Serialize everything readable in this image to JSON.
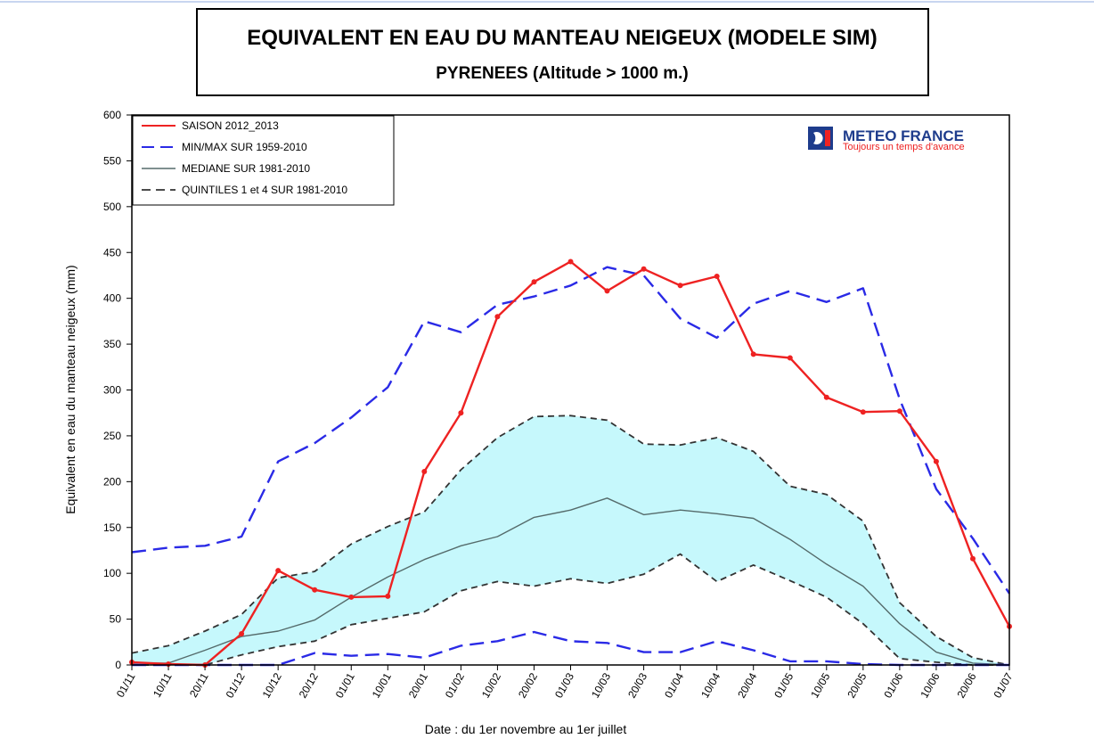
{
  "chart_data": {
    "type": "line",
    "title": "EQUIVALENT EN EAU DU MANTEAU NEIGEUX (MODELE SIM)",
    "subtitle": "PYRENEES  (Altitude > 1000 m.)",
    "xlabel": "Date : du 1er novembre au 1er juillet",
    "ylabel": "Equivalent en eau du manteau neigeux (mm)",
    "ylim": [
      0,
      600
    ],
    "yticks": [
      0,
      50,
      100,
      150,
      200,
      250,
      300,
      350,
      400,
      450,
      500,
      550,
      600
    ],
    "categories": [
      "01/11",
      "10/11",
      "20/11",
      "01/12",
      "10/12",
      "20/12",
      "01/01",
      "10/01",
      "20/01",
      "01/02",
      "10/02",
      "20/02",
      "01/03",
      "10/03",
      "20/03",
      "01/04",
      "10/04",
      "20/04",
      "01/05",
      "10/05",
      "20/05",
      "01/06",
      "10/06",
      "20/06",
      "01/07"
    ],
    "grid": false,
    "legend_position": "top-left",
    "series": [
      {
        "name": "SAISON 2012_2013",
        "color": "#ee2222",
        "style": "solid",
        "markers": true,
        "values": [
          3,
          1,
          0,
          34,
          103,
          82,
          74,
          75,
          211,
          275,
          380,
          418,
          440,
          408,
          432,
          414,
          424,
          339,
          335,
          292,
          276,
          277,
          222,
          116,
          42
        ]
      },
      {
        "name": "MIN/MAX SUR 1959-2010",
        "color": "#2a2ae6",
        "style": "dashed",
        "values": [
          123,
          128,
          130,
          140,
          222,
          242,
          270,
          303,
          375,
          363,
          393,
          402,
          414,
          434,
          425,
          378,
          357,
          394,
          408,
          396,
          411,
          290,
          192,
          138,
          78
        ]
      },
      {
        "name": "",
        "color": "#2a2ae6",
        "style": "dashed",
        "values": [
          0,
          0,
          0,
          0,
          0,
          13,
          10,
          12,
          8,
          21,
          26,
          36,
          26,
          24,
          14,
          14,
          26,
          16,
          4,
          4,
          1,
          0,
          0,
          0,
          0
        ]
      },
      {
        "name": "MEDIANE SUR 1981-2010",
        "color": "#556b6b",
        "style": "solid",
        "values": [
          2,
          2,
          16,
          31,
          37,
          49,
          74,
          96,
          115,
          130,
          140,
          161,
          169,
          182,
          164,
          169,
          165,
          160,
          137,
          110,
          86,
          45,
          14,
          2,
          0
        ]
      },
      {
        "name": "QUINTILES 1 et 4 SUR 1981-2010",
        "color": "#333333",
        "style": "dashed",
        "values": [
          13,
          21,
          37,
          55,
          95,
          102,
          132,
          151,
          167,
          213,
          248,
          271,
          272,
          267,
          241,
          240,
          248,
          233,
          195,
          186,
          157,
          68,
          31,
          8,
          0
        ]
      },
      {
        "name": "",
        "color": "#333333",
        "style": "dashed",
        "values": [
          0,
          0,
          0,
          11,
          20,
          26,
          44,
          51,
          58,
          81,
          91,
          86,
          94,
          89,
          99,
          121,
          91,
          109,
          92,
          74,
          45,
          7,
          3,
          0,
          0
        ]
      }
    ]
  },
  "logo": {
    "name": "METEO FRANCE",
    "tagline": "Toujours un temps d'avance",
    "color_primary": "#1e3c8c",
    "color_accent": "#ee2222"
  },
  "colors": {
    "band_fill": "#c6f8fc",
    "frame": "#000000"
  }
}
